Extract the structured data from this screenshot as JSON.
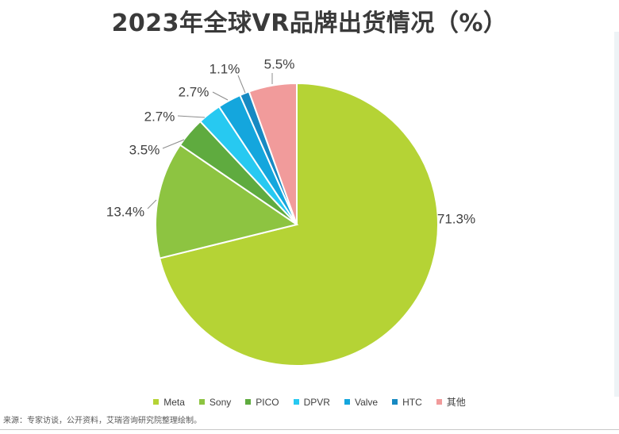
{
  "title": "2023年全球VR品牌出货情况（%）",
  "source": "来源：专家访谈，公开资料，艾瑞咨询研究院整理绘制。",
  "chart_data": {
    "type": "pie",
    "title": "2023年全球VR品牌出货情况（%）",
    "legend_position": "bottom",
    "start_angle_deg": 0,
    "direction": "clockwise",
    "slices": [
      {
        "name": "Meta",
        "value": 71.3,
        "label": "71.3%",
        "color": "#b5d335"
      },
      {
        "name": "Sony",
        "value": 13.4,
        "label": "13.4%",
        "color": "#8dc441"
      },
      {
        "name": "PICO",
        "value": 3.5,
        "label": "3.5%",
        "color": "#5fab3f"
      },
      {
        "name": "DPVR",
        "value": 2.7,
        "label": "2.7%",
        "color": "#27c9f1"
      },
      {
        "name": "Valve",
        "value": 2.7,
        "label": "2.7%",
        "color": "#14a6dd"
      },
      {
        "name": "HTC",
        "value": 1.1,
        "label": "1.1%",
        "color": "#1789c2"
      },
      {
        "name": "其他",
        "value": 5.5,
        "label": "5.5%",
        "color": "#f19b9b"
      }
    ]
  }
}
